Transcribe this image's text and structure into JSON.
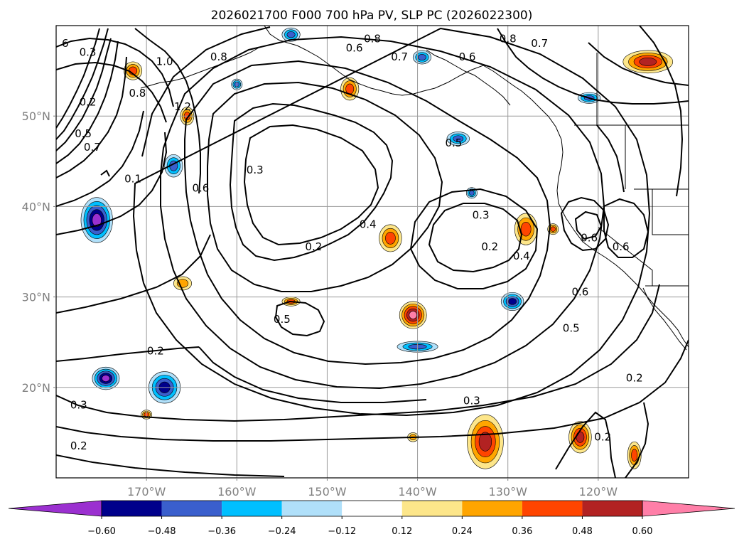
{
  "chart_data": {
    "type": "contour-map",
    "title": "2026021700 F000 700 hPa PV, SLP PC (2026022300)",
    "field_filled": "700 hPa PV",
    "field_contoured": "SLP PC",
    "x_ticks": [
      "170°W",
      "160°W",
      "150°W",
      "140°W",
      "130°W",
      "120°W"
    ],
    "y_ticks": [
      "50°N",
      "40°N",
      "30°N",
      "20°N"
    ],
    "lon_range": [
      -180,
      -110
    ],
    "lat_range": [
      10,
      60
    ],
    "grid": true,
    "colorbar": {
      "orientation": "horizontal",
      "extend": "both",
      "tick_labels": [
        "−0.60",
        "−0.48",
        "−0.36",
        "−0.24",
        "−0.12",
        "0.12",
        "0.24",
        "0.36",
        "0.48",
        "0.60"
      ],
      "colors": [
        "#9b30d0",
        "#00008b",
        "#3a5fcd",
        "#00bfff",
        "#b0e0fa",
        "#ffffff",
        "#fde68a",
        "#ffa500",
        "#ff4500",
        "#b22222",
        "#ff7fa8"
      ]
    },
    "contour_labels": [
      {
        "text": "0.3",
        "lon": -176.5,
        "lat": 57
      },
      {
        "text": "6",
        "lon": -179,
        "lat": 58
      },
      {
        "text": "1.0",
        "lon": -168,
        "lat": 56
      },
      {
        "text": "0.2",
        "lon": -176.5,
        "lat": 51.5
      },
      {
        "text": "0.8",
        "lon": -171,
        "lat": 52.5
      },
      {
        "text": "1.2",
        "lon": -166,
        "lat": 51
      },
      {
        "text": "0.5",
        "lon": -177,
        "lat": 48
      },
      {
        "text": "0.7",
        "lon": -176,
        "lat": 46.5
      },
      {
        "text": "0.1",
        "lon": -171.5,
        "lat": 43
      },
      {
        "text": "0.6",
        "lon": -164,
        "lat": 42
      },
      {
        "text": "0.8",
        "lon": -162,
        "lat": 56.5
      },
      {
        "text": "0.3",
        "lon": -158,
        "lat": 44
      },
      {
        "text": "0.6",
        "lon": -147,
        "lat": 57.5
      },
      {
        "text": "0.8",
        "lon": -145,
        "lat": 58.5
      },
      {
        "text": "0.7",
        "lon": -142,
        "lat": 56.5
      },
      {
        "text": "0.6",
        "lon": -134.5,
        "lat": 56.5
      },
      {
        "text": "0.8",
        "lon": -130,
        "lat": 58.5
      },
      {
        "text": "0.7",
        "lon": -126.5,
        "lat": 58
      },
      {
        "text": "0.5",
        "lon": -136,
        "lat": 47
      },
      {
        "text": "0.4",
        "lon": -145.5,
        "lat": 38
      },
      {
        "text": "0.2",
        "lon": -151.5,
        "lat": 35.5
      },
      {
        "text": "0.3",
        "lon": -133,
        "lat": 39
      },
      {
        "text": "0.2",
        "lon": -132,
        "lat": 35.5
      },
      {
        "text": "0.4",
        "lon": -128.5,
        "lat": 34.5
      },
      {
        "text": "0.6",
        "lon": -121,
        "lat": 36.5
      },
      {
        "text": "0.6",
        "lon": -117.5,
        "lat": 35.5
      },
      {
        "text": "0.6",
        "lon": -122,
        "lat": 30.5
      },
      {
        "text": "0.5",
        "lon": -123,
        "lat": 26.5
      },
      {
        "text": "0.5",
        "lon": -155,
        "lat": 27.5
      },
      {
        "text": "0.2",
        "lon": -169,
        "lat": 24
      },
      {
        "text": "0.3",
        "lon": -177.5,
        "lat": 18
      },
      {
        "text": "0.2",
        "lon": -177.5,
        "lat": 13.5
      },
      {
        "text": "0.3",
        "lon": -134,
        "lat": 18.5
      },
      {
        "text": "0.2",
        "lon": -119.5,
        "lat": 14.5
      },
      {
        "text": "0.2",
        "lon": -116,
        "lat": 21
      }
    ],
    "pv_features": [
      {
        "sign": "negative",
        "category": "-0.60",
        "lon": -175.5,
        "lat": 38.5,
        "extent_deg": [
          3.5,
          5
        ]
      },
      {
        "sign": "negative",
        "category": "-0.60",
        "lon": -174.5,
        "lat": 21,
        "extent_deg": [
          3,
          2.5
        ]
      },
      {
        "sign": "negative",
        "category": "-0.48",
        "lon": -168,
        "lat": 20,
        "extent_deg": [
          3.5,
          3.5
        ]
      },
      {
        "sign": "negative",
        "category": "-0.36",
        "lon": -167,
        "lat": 44.5,
        "extent_deg": [
          2,
          2.5
        ]
      },
      {
        "sign": "negative",
        "category": "-0.36",
        "lon": -160,
        "lat": 53.5,
        "extent_deg": [
          1.2,
          1.2
        ]
      },
      {
        "sign": "negative",
        "category": "-0.36",
        "lon": -135.5,
        "lat": 47.5,
        "extent_deg": [
          2.5,
          1.5
        ]
      },
      {
        "sign": "negative",
        "category": "-0.36",
        "lon": -140,
        "lat": 24.5,
        "extent_deg": [
          4.5,
          1.2
        ]
      },
      {
        "sign": "negative",
        "category": "-0.48",
        "lon": -129.5,
        "lat": 29.5,
        "extent_deg": [
          2.5,
          2
        ]
      },
      {
        "sign": "negative",
        "category": "-0.36",
        "lon": -139.5,
        "lat": 56.5,
        "extent_deg": [
          2,
          1.5
        ]
      },
      {
        "sign": "negative",
        "category": "-0.36",
        "lon": -121,
        "lat": 52,
        "extent_deg": [
          2.5,
          1.2
        ]
      },
      {
        "sign": "negative",
        "category": "-0.36",
        "lon": -134,
        "lat": 41.5,
        "extent_deg": [
          1.2,
          1.2
        ]
      },
      {
        "sign": "negative",
        "category": "-0.36",
        "lon": -154,
        "lat": 59,
        "extent_deg": [
          2,
          1.5
        ]
      },
      {
        "sign": "positive",
        "category": "0.60",
        "lon": -140.5,
        "lat": 28,
        "extent_deg": [
          3,
          3
        ]
      },
      {
        "sign": "positive",
        "category": "0.48",
        "lon": -114.5,
        "lat": 56,
        "extent_deg": [
          5.5,
          2.5
        ]
      },
      {
        "sign": "positive",
        "category": "0.36",
        "lon": -143,
        "lat": 36.5,
        "extent_deg": [
          2.5,
          3
        ]
      },
      {
        "sign": "positive",
        "category": "0.36",
        "lon": -128,
        "lat": 37.5,
        "extent_deg": [
          2.5,
          3.5
        ]
      },
      {
        "sign": "positive",
        "category": "0.36",
        "lon": -171.5,
        "lat": 55,
        "extent_deg": [
          2,
          2
        ]
      },
      {
        "sign": "positive",
        "category": "0.36",
        "lon": -165.5,
        "lat": 50,
        "extent_deg": [
          1.5,
          2
        ]
      },
      {
        "sign": "positive",
        "category": "0.36",
        "lon": -147.5,
        "lat": 53,
        "extent_deg": [
          2,
          2.5
        ]
      },
      {
        "sign": "positive",
        "category": "0.48",
        "lon": -132.5,
        "lat": 14,
        "extent_deg": [
          4,
          6
        ]
      },
      {
        "sign": "positive",
        "category": "0.48",
        "lon": -122,
        "lat": 14.5,
        "extent_deg": [
          2.5,
          3.5
        ]
      },
      {
        "sign": "positive",
        "category": "0.36",
        "lon": -116,
        "lat": 12.5,
        "extent_deg": [
          1.5,
          3
        ]
      },
      {
        "sign": "positive",
        "category": "0.36",
        "lon": -154,
        "lat": 29.5,
        "extent_deg": [
          2,
          1
        ]
      },
      {
        "sign": "positive",
        "category": "0.24",
        "lon": -166,
        "lat": 31.5,
        "extent_deg": [
          2,
          1.5
        ]
      },
      {
        "sign": "positive",
        "category": "0.36",
        "lon": -170,
        "lat": 17,
        "extent_deg": [
          1.2,
          1
        ]
      },
      {
        "sign": "positive",
        "category": "0.36",
        "lon": -125,
        "lat": 37.5,
        "extent_deg": [
          1.2,
          1.2
        ]
      },
      {
        "sign": "positive",
        "category": "0.24",
        "lon": -140.5,
        "lat": 14.5,
        "extent_deg": [
          1.2,
          1
        ]
      }
    ]
  }
}
